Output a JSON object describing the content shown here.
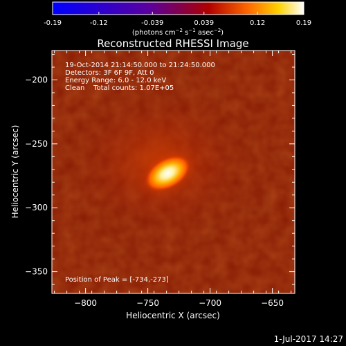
{
  "colorbar": {
    "ticks": [
      "-0.19",
      "-0.12",
      "-0.039",
      "0.039",
      "0.12",
      "0.19"
    ],
    "tick_values": [
      -0.19,
      -0.12,
      -0.039,
      0.039,
      0.12,
      0.19
    ],
    "range": [
      -0.19,
      0.19
    ],
    "label_main": "(photons cm",
    "label_sup1": "−2",
    "label_mid": " s",
    "label_sup2": "−1",
    "label_end": " asec",
    "label_sup3": "−2",
    "label_close": ")"
  },
  "footer_date": "1-Jul-2017 14:27",
  "chart_data": {
    "type": "heatmap",
    "title": "Reconstructed RHESSI Image",
    "xlabel": "Heliocentric X (arcsec)",
    "ylabel": "Heliocentric Y (arcsec)",
    "xlim": [
      -827,
      -632
    ],
    "ylim": [
      -367,
      -177
    ],
    "x_ticks": [
      -800,
      -750,
      -700,
      -650
    ],
    "x_tick_labels": [
      "−800",
      "−750",
      "−700",
      "−650"
    ],
    "y_ticks": [
      -200,
      -250,
      -300,
      -350
    ],
    "y_tick_labels": [
      "−200",
      "−250",
      "−300",
      "−350"
    ],
    "colormap": "red-temperature",
    "annotations": [
      "19-Oct-2014 21:14:50.000 to 21:24:50.000",
      "Detectors: 3F 6F 9F, Att 0",
      "Energy Range: 6.0 - 12.0 keV",
      "Clean    Total counts: 1.07E+05",
      "Position of Peak = [-734,-273]"
    ],
    "peak": {
      "x": -734,
      "y": -273
    },
    "source_orientation_deg": -30,
    "background_color": "#861a02",
    "peak_color": "#ffffff"
  }
}
